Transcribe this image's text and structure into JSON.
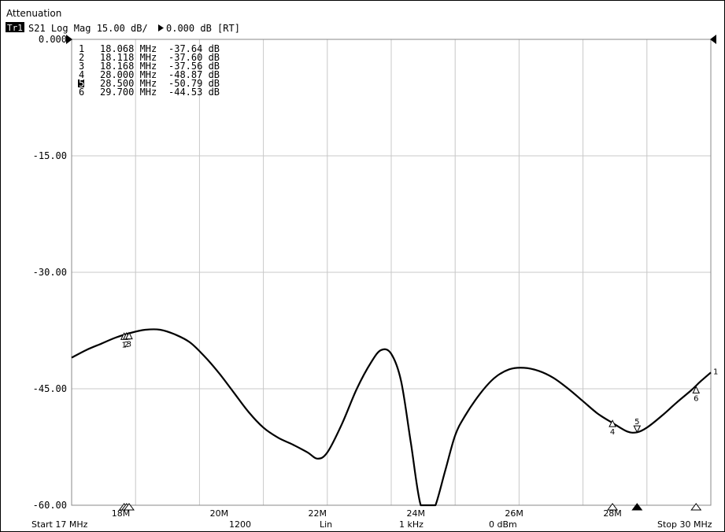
{
  "header": {
    "title": "Attenuation",
    "trace_badge": "Tr1",
    "trace_info": "S21 Log Mag 15.00 dB/ ",
    "ref_value": "0.000 dB [RT]"
  },
  "footer": {
    "start": "Start 17 MHz",
    "points": "1200",
    "sweep_type": "Lin",
    "ifbw": "1 kHz",
    "power": "0 dBm",
    "stop": "Stop 30 MHz"
  },
  "colors": {
    "trace": "#000000",
    "grid": "#c8c8c8",
    "badge_bg": "#000000",
    "badge_fg": "#ffffff"
  },
  "chart_data": {
    "type": "line",
    "title": "Attenuation",
    "xlabel": "",
    "ylabel": "",
    "xlim": [
      17,
      30
    ],
    "ylim": [
      -60,
      0
    ],
    "grid": true,
    "y_ticks": [
      {
        "value": 0,
        "label": "0.000"
      },
      {
        "value": -15,
        "label": "-15.00"
      },
      {
        "value": -30,
        "label": "-30.00"
      },
      {
        "value": -45,
        "label": "-45.00"
      },
      {
        "value": -60,
        "label": "-60.00"
      }
    ],
    "x_ticks": [
      {
        "value": 18,
        "label": "18M"
      },
      {
        "value": 20,
        "label": "20M"
      },
      {
        "value": 22,
        "label": "22M"
      },
      {
        "value": 24,
        "label": "24M"
      },
      {
        "value": 26,
        "label": "26M"
      },
      {
        "value": 28,
        "label": "28M"
      }
    ],
    "series": [
      {
        "x": [
          17.0,
          17.3,
          17.6,
          17.9,
          18.2,
          18.5,
          18.8,
          19.1,
          19.4,
          19.7,
          20.0,
          20.3,
          20.6,
          20.9,
          21.2,
          21.5,
          21.8,
          22.0,
          22.2,
          22.5,
          22.8,
          23.1,
          23.3,
          23.5,
          23.7,
          23.9,
          24.1,
          24.3,
          24.4,
          24.6,
          24.8,
          25.0,
          25.3,
          25.6,
          25.9,
          26.2,
          26.5,
          26.8,
          27.1,
          27.4,
          27.7,
          28.0,
          28.3,
          28.5,
          28.7,
          29.0,
          29.3,
          29.6,
          29.8,
          30.0
        ],
        "y": [
          -41.0,
          -40.0,
          -39.2,
          -38.4,
          -37.8,
          -37.4,
          -37.4,
          -38.0,
          -39.0,
          -40.8,
          -43.0,
          -45.5,
          -48.0,
          -50.0,
          -51.3,
          -52.2,
          -53.2,
          -54.0,
          -53.2,
          -49.5,
          -45.0,
          -41.5,
          -40.0,
          -40.5,
          -44.0,
          -52.0,
          -60.0,
          -60.0,
          -60.0,
          -55.5,
          -51.0,
          -48.5,
          -45.7,
          -43.6,
          -42.5,
          -42.3,
          -42.7,
          -43.6,
          -45.0,
          -46.6,
          -48.2,
          -49.4,
          -50.5,
          -50.6,
          -50.0,
          -48.5,
          -46.8,
          -45.2,
          -44.0,
          -42.9
        ]
      }
    ],
    "active_marker": 5,
    "markers": [
      {
        "num": "1",
        "freq": "18.068",
        "freq_label": "18.068 MHz",
        "value": -37.64,
        "value_label": "-37.64 dB"
      },
      {
        "num": "2",
        "freq": "18.118",
        "freq_label": "18.118 MHz",
        "value": -37.6,
        "value_label": "-37.60 dB"
      },
      {
        "num": "3",
        "freq": "18.168",
        "freq_label": "18.168 MHz",
        "value": -37.56,
        "value_label": "-37.56 dB"
      },
      {
        "num": "4",
        "freq": "28.000",
        "freq_label": "28.000 MHz",
        "value": -48.87,
        "value_label": "-48.87 dB"
      },
      {
        "num": "5",
        "freq": "28.500",
        "freq_label": "28.500 MHz",
        "value": -50.79,
        "value_label": "-50.79 dB"
      },
      {
        "num": "6",
        "freq": "29.700",
        "freq_label": "29.700 MHz",
        "value": -44.53,
        "value_label": "-44.53 dB"
      }
    ],
    "trace_end_label": "1"
  }
}
